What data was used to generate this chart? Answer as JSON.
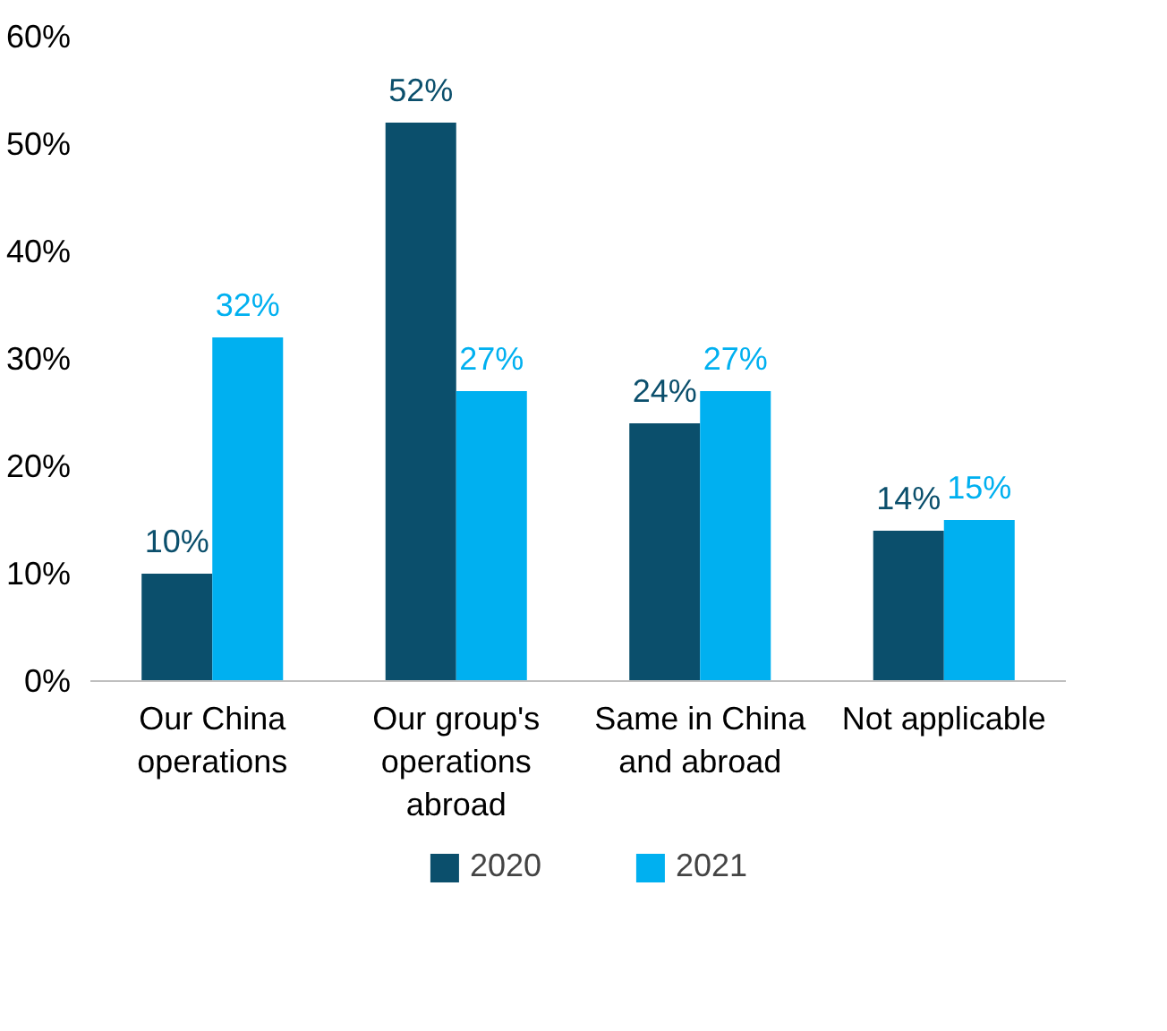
{
  "chart_data": {
    "type": "bar",
    "categories": [
      "Our China operations",
      "Our group's operations abroad",
      "Same in China and abroad",
      "Not applicable"
    ],
    "series": [
      {
        "name": "2020",
        "color": "#0b4f6c",
        "values": [
          10,
          52,
          24,
          14
        ],
        "value_labels": [
          "10%",
          "52%",
          "24%",
          "14%"
        ]
      },
      {
        "name": "2021",
        "color": "#00b0f0",
        "values": [
          32,
          27,
          27,
          15
        ],
        "value_labels": [
          "32%",
          "27%",
          "27%",
          "15%"
        ]
      }
    ],
    "ylim": [
      0,
      60
    ],
    "yticks": [
      {
        "value": 0,
        "label": "0%"
      },
      {
        "value": 10,
        "label": "10%"
      },
      {
        "value": 20,
        "label": "20%"
      },
      {
        "value": 30,
        "label": "30%"
      },
      {
        "value": 40,
        "label": "40%"
      },
      {
        "value": 50,
        "label": "50%"
      },
      {
        "value": 60,
        "label": "60%"
      }
    ],
    "grid": false,
    "legend": "bottom"
  }
}
